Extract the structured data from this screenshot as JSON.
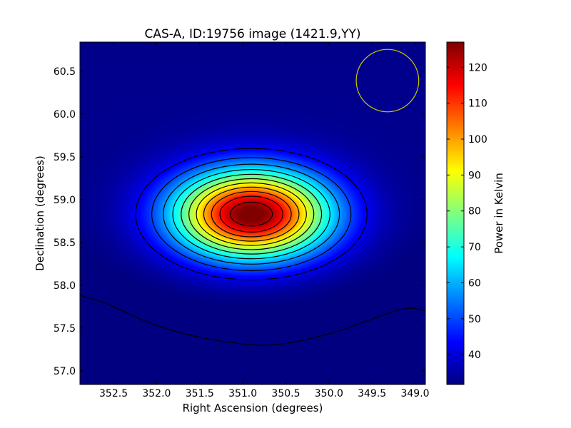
{
  "chart_data": {
    "type": "heatmap",
    "title": "CAS-A, ID:19756 image (1421.9,YY)",
    "xlabel": "Right Ascension (degrees)",
    "ylabel": "Declination (degrees)",
    "colorbar_label": "Power in Kelvin",
    "colormap": "jet",
    "xlim": [
      352.89,
      348.88
    ],
    "ylim": [
      56.84,
      60.84
    ],
    "clim": [
      31.7,
      127
    ],
    "xticks": [
      352.5,
      352.0,
      351.5,
      351.0,
      350.5,
      350.0,
      349.5,
      349.0
    ],
    "xtick_labels": [
      "352.5",
      "352.0",
      "351.5",
      "351.0",
      "350.5",
      "350.0",
      "349.5",
      "349.0"
    ],
    "yticks": [
      57.0,
      57.5,
      58.0,
      58.5,
      59.0,
      59.5,
      60.0,
      60.5
    ],
    "ytick_labels": [
      "57.0",
      "57.5",
      "58.0",
      "58.5",
      "59.0",
      "59.5",
      "60.0",
      "60.5"
    ],
    "cbar_ticks": [
      40,
      50,
      60,
      70,
      80,
      90,
      100,
      110,
      120
    ],
    "cbar_tick_labels": [
      "40",
      "50",
      "60",
      "70",
      "80",
      "90",
      "100",
      "110",
      "120"
    ],
    "source": {
      "ra": 350.9,
      "dec": 58.83,
      "peak": 127,
      "background": 30,
      "sigma_ra_deg": 0.63,
      "sigma_dec_deg": 0.36
    },
    "contour_levels": [
      40,
      48,
      56,
      64,
      72,
      80,
      88,
      96,
      104,
      112,
      120
    ],
    "low_contour": [
      [
        352.89,
        57.88
      ],
      [
        352.57,
        57.79
      ],
      [
        352.16,
        57.58
      ],
      [
        351.66,
        57.42
      ],
      [
        351.17,
        57.33
      ],
      [
        350.67,
        57.28
      ],
      [
        350.0,
        57.42
      ],
      [
        349.51,
        57.6
      ],
      [
        349.09,
        57.75
      ],
      [
        348.88,
        57.7
      ]
    ],
    "beam": {
      "ra": 349.32,
      "dec": 60.39,
      "radius_deg": 0.365,
      "color": "#c8c800"
    }
  }
}
